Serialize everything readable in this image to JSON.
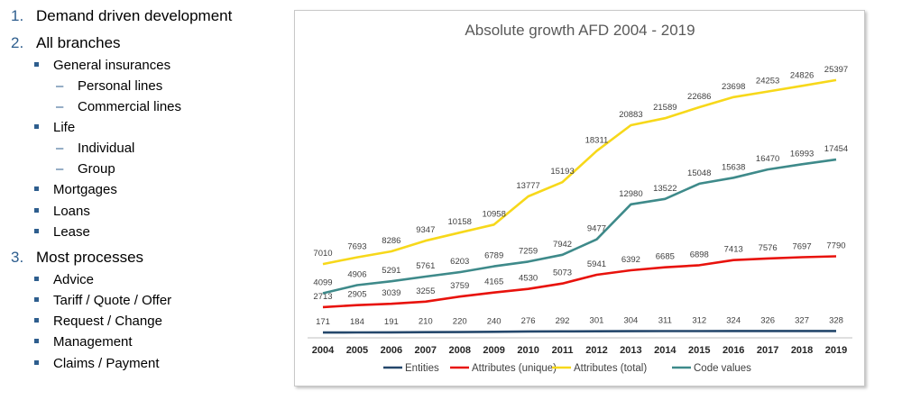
{
  "outline": {
    "items": [
      {
        "num": "1.",
        "label": "Demand driven development"
      },
      {
        "num": "2.",
        "label": "All branches"
      },
      {
        "num": "3.",
        "label": "Most processes"
      }
    ],
    "branches": [
      "General insurances",
      "Life",
      "Mortgages",
      "Loans",
      "Lease"
    ],
    "general_sub": [
      "Personal lines",
      "Commercial lines"
    ],
    "life_sub": [
      "Individual",
      "Group"
    ],
    "processes": [
      "Advice",
      "Tariff / Quote / Offer",
      "Request / Change",
      "Management",
      "Claims / Payment"
    ],
    "dash": "–"
  },
  "chart_data": {
    "type": "line",
    "title": "Absolute growth AFD 2004 - 2019",
    "xlabel": "",
    "ylabel": "",
    "categories": [
      "2004",
      "2005",
      "2006",
      "2007",
      "2008",
      "2009",
      "2010",
      "2011",
      "2012",
      "2013",
      "2014",
      "2015",
      "2016",
      "2017",
      "2018",
      "2019"
    ],
    "series": [
      {
        "name": "Entities",
        "color": "#24476b",
        "values": [
          171,
          184,
          191,
          210,
          220,
          240,
          276,
          292,
          301,
          304,
          311,
          312,
          324,
          326,
          327,
          328
        ]
      },
      {
        "name": "Attributes (unique)",
        "color": "#e8120c",
        "values": [
          2713,
          2905,
          3039,
          3255,
          3759,
          4165,
          4530,
          5073,
          5941,
          6392,
          6685,
          6898,
          7413,
          7576,
          7697,
          7790
        ]
      },
      {
        "name": "Attributes (total)",
        "color": "#f7d81a",
        "values": [
          7010,
          7693,
          8286,
          9347,
          10158,
          10958,
          13777,
          15193,
          18311,
          20883,
          21589,
          22686,
          23698,
          24253,
          24826,
          25397
        ]
      },
      {
        "name": "Code values",
        "color": "#3e8a8a",
        "values": [
          4099,
          4906,
          5291,
          5761,
          6203,
          6789,
          7259,
          7942,
          9477,
          12980,
          13522,
          15048,
          15638,
          16470,
          16993,
          17454
        ]
      }
    ],
    "ylim": [
      0,
      28000
    ],
    "grid": false,
    "legend_position": "bottom"
  }
}
